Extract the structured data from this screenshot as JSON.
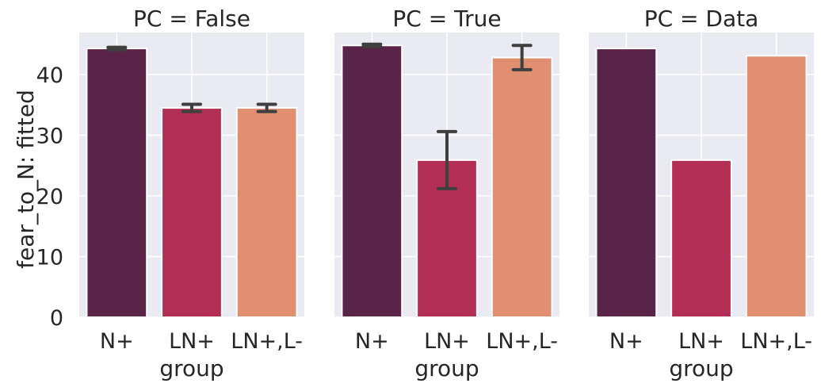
{
  "figure": {
    "ylabel": "fear_to_N: fitted",
    "xlabel": "group"
  },
  "colors": {
    "panel_bg": "#eaeaf2",
    "grid": "#ffffff",
    "N+": "#5a2449",
    "LN+": "#b32e55",
    "LN+,L-": "#e08f70",
    "errorbar": "#3f3f3f"
  },
  "chart_data": [
    {
      "type": "bar",
      "title": "PC = False",
      "categories": [
        "N+",
        "LN+",
        "LN+,L-"
      ],
      "values": [
        44.3,
        34.5,
        34.5
      ],
      "error_low": [
        44.1,
        33.9,
        33.9
      ],
      "error_high": [
        44.5,
        35.1,
        35.1
      ],
      "xlabel": "group",
      "ylabel": "fear_to_N: fitted",
      "ylim": [
        0,
        47
      ],
      "yticks": [
        0,
        10,
        20,
        30,
        40
      ],
      "grid": true
    },
    {
      "type": "bar",
      "title": "PC = True",
      "categories": [
        "N+",
        "LN+",
        "LN+,L-"
      ],
      "values": [
        44.8,
        25.9,
        42.8
      ],
      "error_low": [
        44.6,
        21.2,
        40.8
      ],
      "error_high": [
        45.0,
        30.6,
        44.8
      ],
      "xlabel": "group",
      "ylabel": "",
      "ylim": [
        0,
        47
      ],
      "yticks": [
        0,
        10,
        20,
        30,
        40
      ],
      "grid": true
    },
    {
      "type": "bar",
      "title": "PC = Data",
      "categories": [
        "N+",
        "LN+",
        "LN+,L-"
      ],
      "values": [
        44.3,
        25.9,
        43.1
      ],
      "error_low": null,
      "error_high": null,
      "xlabel": "group",
      "ylabel": "",
      "ylim": [
        0,
        47
      ],
      "yticks": [
        0,
        10,
        20,
        30,
        40
      ],
      "grid": true
    }
  ]
}
